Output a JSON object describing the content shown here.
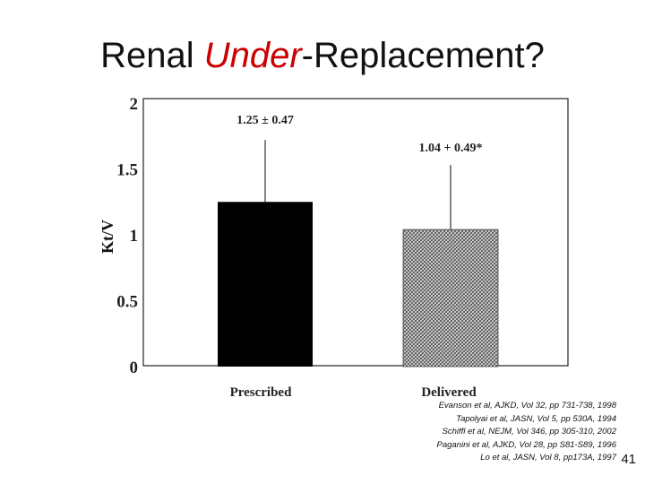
{
  "slide": {
    "title_part1": "Renal ",
    "title_accent": "Under",
    "title_part2": "-Replacement?",
    "page_number": "41"
  },
  "citations": [
    "Evanson et al, AJKD, Vol 32, pp 731-738, 1998",
    "Tapolyai et al, JASN, Vol 5, pp 530A, 1994",
    "Schiffl et al, NEJM, Vol 346, pp 305-310, 2002",
    "Paganini et al, AJKD, Vol 28, pp S81-S89, 1996",
    "Lo et al, JASN, Vol 8, pp173A, 1997"
  ],
  "chart_data": {
    "type": "bar",
    "title": "",
    "xlabel": "",
    "ylabel": "Kt/V",
    "ylim": [
      0,
      2
    ],
    "yticks": [
      0,
      0.5,
      1,
      1.5,
      2
    ],
    "ytick_labels": [
      "0",
      "0.5",
      "1",
      "1.5",
      "2"
    ],
    "categories": [
      "Prescribed",
      "Delivered"
    ],
    "values": [
      1.25,
      1.04
    ],
    "errors": [
      0.47,
      0.49
    ],
    "data_labels": [
      "1.25 ± 0.47",
      "1.04 + 0.49*"
    ],
    "bar_styles": [
      "solid-black",
      "gray-hatched"
    ],
    "grid": false,
    "colors": {
      "bar_solid": "#000000",
      "bar_hatch": "#555555",
      "axis": "#222222"
    }
  }
}
